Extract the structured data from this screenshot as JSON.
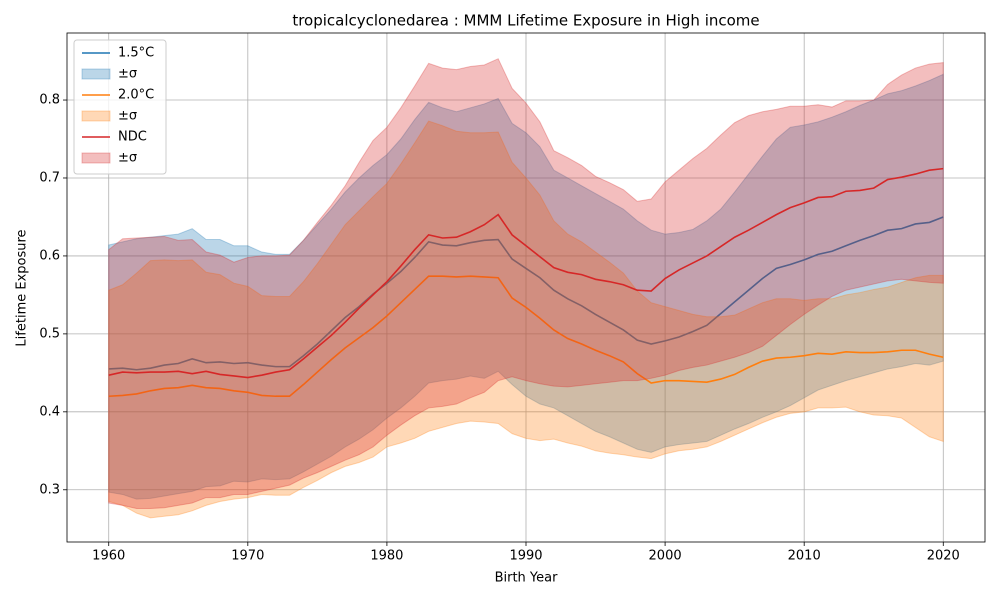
{
  "chart_data": {
    "type": "line_band",
    "title": "tropicalcyclonedarea : MMM Lifetime Exposure in High income",
    "xlabel": "Birth Year",
    "ylabel": "Lifetime Exposure",
    "x": [
      1960,
      1961,
      1962,
      1963,
      1964,
      1965,
      1966,
      1967,
      1968,
      1969,
      1970,
      1971,
      1972,
      1973,
      1974,
      1975,
      1976,
      1977,
      1978,
      1979,
      1980,
      1981,
      1982,
      1983,
      1984,
      1985,
      1986,
      1987,
      1988,
      1989,
      1990,
      1991,
      1992,
      1993,
      1994,
      1995,
      1996,
      1997,
      1998,
      1999,
      2000,
      2001,
      2002,
      2003,
      2004,
      2005,
      2006,
      2007,
      2008,
      2009,
      2010,
      2011,
      2012,
      2013,
      2014,
      2015,
      2016,
      2017,
      2018,
      2019,
      2020
    ],
    "series": [
      {
        "name": "1.5°C",
        "band_name": "±σ",
        "color": "#1f77b4",
        "values": [
          0.455,
          0.456,
          0.454,
          0.456,
          0.46,
          0.462,
          0.468,
          0.463,
          0.464,
          0.462,
          0.463,
          0.46,
          0.458,
          0.458,
          0.472,
          0.487,
          0.504,
          0.521,
          0.535,
          0.551,
          0.565,
          0.58,
          0.598,
          0.618,
          0.614,
          0.613,
          0.617,
          0.62,
          0.621,
          0.596,
          0.584,
          0.572,
          0.556,
          0.545,
          0.536,
          0.525,
          0.515,
          0.505,
          0.492,
          0.487,
          0.491,
          0.496,
          0.503,
          0.511,
          0.526,
          0.541,
          0.556,
          0.571,
          0.584,
          0.589,
          0.595,
          0.602,
          0.606,
          0.613,
          0.62,
          0.626,
          0.633,
          0.635,
          0.641,
          0.643,
          0.65
        ],
        "upper": [
          0.614,
          0.618,
          0.622,
          0.624,
          0.626,
          0.628,
          0.635,
          0.621,
          0.621,
          0.613,
          0.613,
          0.605,
          0.602,
          0.602,
          0.62,
          0.64,
          0.66,
          0.682,
          0.7,
          0.716,
          0.73,
          0.75,
          0.775,
          0.797,
          0.79,
          0.785,
          0.79,
          0.795,
          0.802,
          0.77,
          0.758,
          0.74,
          0.71,
          0.7,
          0.69,
          0.68,
          0.67,
          0.66,
          0.645,
          0.633,
          0.628,
          0.63,
          0.634,
          0.645,
          0.66,
          0.682,
          0.705,
          0.728,
          0.75,
          0.765,
          0.768,
          0.772,
          0.778,
          0.785,
          0.793,
          0.8,
          0.808,
          0.812,
          0.818,
          0.825,
          0.833
        ],
        "lower": [
          0.297,
          0.294,
          0.288,
          0.289,
          0.292,
          0.295,
          0.298,
          0.304,
          0.305,
          0.311,
          0.31,
          0.314,
          0.313,
          0.314,
          0.323,
          0.333,
          0.343,
          0.355,
          0.365,
          0.377,
          0.392,
          0.405,
          0.42,
          0.437,
          0.44,
          0.442,
          0.446,
          0.443,
          0.452,
          0.435,
          0.42,
          0.41,
          0.405,
          0.395,
          0.385,
          0.375,
          0.368,
          0.36,
          0.352,
          0.348,
          0.355,
          0.358,
          0.36,
          0.362,
          0.37,
          0.378,
          0.385,
          0.393,
          0.4,
          0.408,
          0.418,
          0.428,
          0.434,
          0.44,
          0.445,
          0.45,
          0.455,
          0.458,
          0.462,
          0.46,
          0.465
        ]
      },
      {
        "name": "2.0°C",
        "band_name": "±σ",
        "color": "#ff7f0e",
        "values": [
          0.42,
          0.421,
          0.423,
          0.427,
          0.43,
          0.431,
          0.434,
          0.431,
          0.43,
          0.427,
          0.425,
          0.421,
          0.42,
          0.42,
          0.435,
          0.451,
          0.467,
          0.482,
          0.495,
          0.508,
          0.523,
          0.54,
          0.557,
          0.574,
          0.574,
          0.573,
          0.574,
          0.573,
          0.572,
          0.546,
          0.534,
          0.52,
          0.505,
          0.494,
          0.487,
          0.479,
          0.472,
          0.464,
          0.449,
          0.437,
          0.44,
          0.44,
          0.439,
          0.438,
          0.442,
          0.448,
          0.457,
          0.465,
          0.469,
          0.47,
          0.472,
          0.475,
          0.474,
          0.477,
          0.476,
          0.476,
          0.477,
          0.479,
          0.479,
          0.474,
          0.47
        ],
        "upper": [
          0.556,
          0.563,
          0.578,
          0.594,
          0.595,
          0.594,
          0.595,
          0.579,
          0.576,
          0.565,
          0.561,
          0.549,
          0.548,
          0.548,
          0.567,
          0.59,
          0.615,
          0.64,
          0.658,
          0.676,
          0.693,
          0.718,
          0.745,
          0.773,
          0.767,
          0.76,
          0.758,
          0.758,
          0.759,
          0.72,
          0.7,
          0.678,
          0.645,
          0.628,
          0.618,
          0.605,
          0.592,
          0.578,
          0.555,
          0.54,
          0.535,
          0.53,
          0.525,
          0.522,
          0.522,
          0.524,
          0.532,
          0.54,
          0.545,
          0.545,
          0.543,
          0.545,
          0.545,
          0.55,
          0.553,
          0.557,
          0.56,
          0.566,
          0.572,
          0.575,
          0.575
        ],
        "lower": [
          0.285,
          0.28,
          0.27,
          0.264,
          0.266,
          0.268,
          0.273,
          0.28,
          0.285,
          0.288,
          0.29,
          0.294,
          0.293,
          0.293,
          0.303,
          0.312,
          0.322,
          0.33,
          0.335,
          0.342,
          0.355,
          0.36,
          0.366,
          0.375,
          0.38,
          0.385,
          0.388,
          0.387,
          0.385,
          0.372,
          0.366,
          0.363,
          0.365,
          0.36,
          0.356,
          0.35,
          0.347,
          0.345,
          0.342,
          0.34,
          0.346,
          0.35,
          0.352,
          0.355,
          0.362,
          0.37,
          0.378,
          0.386,
          0.393,
          0.398,
          0.4,
          0.405,
          0.405,
          0.406,
          0.4,
          0.396,
          0.395,
          0.392,
          0.38,
          0.368,
          0.362
        ]
      },
      {
        "name": "NDC",
        "band_name": "±σ",
        "color": "#d62728",
        "values": [
          0.447,
          0.451,
          0.45,
          0.451,
          0.451,
          0.452,
          0.449,
          0.452,
          0.448,
          0.446,
          0.444,
          0.447,
          0.451,
          0.454,
          0.468,
          0.483,
          0.498,
          0.515,
          0.533,
          0.55,
          0.567,
          0.587,
          0.608,
          0.627,
          0.623,
          0.624,
          0.631,
          0.64,
          0.653,
          0.627,
          0.613,
          0.599,
          0.585,
          0.579,
          0.576,
          0.57,
          0.567,
          0.563,
          0.556,
          0.555,
          0.571,
          0.582,
          0.591,
          0.6,
          0.612,
          0.624,
          0.633,
          0.643,
          0.653,
          0.662,
          0.668,
          0.675,
          0.676,
          0.683,
          0.684,
          0.687,
          0.698,
          0.701,
          0.705,
          0.71,
          0.712
        ],
        "upper": [
          0.608,
          0.622,
          0.623,
          0.624,
          0.625,
          0.62,
          0.621,
          0.605,
          0.601,
          0.592,
          0.598,
          0.6,
          0.6,
          0.601,
          0.62,
          0.643,
          0.665,
          0.69,
          0.72,
          0.748,
          0.765,
          0.79,
          0.818,
          0.847,
          0.841,
          0.839,
          0.843,
          0.845,
          0.853,
          0.815,
          0.796,
          0.772,
          0.735,
          0.726,
          0.716,
          0.702,
          0.694,
          0.685,
          0.67,
          0.673,
          0.695,
          0.71,
          0.725,
          0.738,
          0.755,
          0.771,
          0.78,
          0.785,
          0.788,
          0.792,
          0.792,
          0.794,
          0.791,
          0.799,
          0.799,
          0.8,
          0.82,
          0.832,
          0.841,
          0.846,
          0.848
        ],
        "lower": [
          0.283,
          0.28,
          0.276,
          0.276,
          0.277,
          0.28,
          0.283,
          0.29,
          0.29,
          0.294,
          0.294,
          0.298,
          0.302,
          0.306,
          0.315,
          0.322,
          0.33,
          0.338,
          0.345,
          0.355,
          0.37,
          0.383,
          0.395,
          0.405,
          0.407,
          0.41,
          0.418,
          0.425,
          0.44,
          0.445,
          0.44,
          0.436,
          0.433,
          0.432,
          0.434,
          0.436,
          0.438,
          0.44,
          0.44,
          0.443,
          0.447,
          0.453,
          0.457,
          0.46,
          0.465,
          0.47,
          0.476,
          0.484,
          0.498,
          0.512,
          0.525,
          0.537,
          0.548,
          0.556,
          0.56,
          0.564,
          0.568,
          0.57,
          0.568,
          0.566,
          0.565
        ]
      }
    ],
    "xlim": [
      1957,
      2023
    ],
    "xticks": [
      1960,
      1970,
      1980,
      1990,
      2000,
      2010,
      2020
    ],
    "ylim": [
      0.233,
      0.886
    ],
    "yticks": [
      0.3,
      0.4,
      0.5,
      0.6,
      0.7,
      0.8
    ],
    "grid": true,
    "legend": "upper left"
  }
}
